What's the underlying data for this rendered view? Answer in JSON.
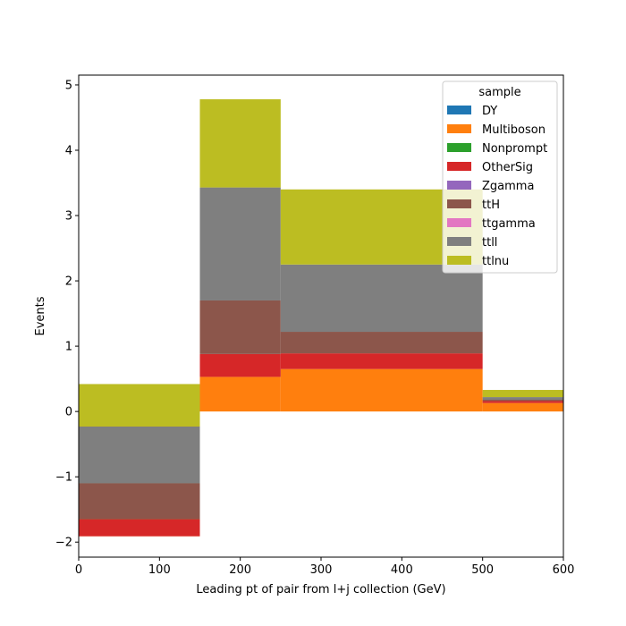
{
  "chart_data": {
    "type": "bar",
    "subtype": "stacked-histogram",
    "xlabel": "Leading pt of pair from l+j collection (GeV)",
    "ylabel": "Events",
    "xlim": [
      0,
      600
    ],
    "ylim": [
      -2.23,
      5.15
    ],
    "x_ticks": [
      0,
      100,
      200,
      300,
      400,
      500,
      600
    ],
    "y_ticks": [
      -2,
      -1,
      0,
      1,
      2,
      3,
      4,
      5
    ],
    "bin_edges": [
      0,
      150,
      250,
      500,
      600
    ],
    "legend": {
      "title": "sample",
      "placement": "top-right"
    },
    "grid": false,
    "series": [
      {
        "name": "DY",
        "color": "#1f77b4",
        "values": [
          0,
          0,
          0,
          0
        ]
      },
      {
        "name": "Multiboson",
        "color": "#ff7f0e",
        "values": [
          -1.91,
          0.53,
          0.65,
          0.13
        ]
      },
      {
        "name": "Nonprompt",
        "color": "#2ca02c",
        "values": [
          0,
          0,
          0,
          0
        ]
      },
      {
        "name": "OtherSig",
        "color": "#d62728",
        "values": [
          0.26,
          0.35,
          0.24,
          0.03
        ]
      },
      {
        "name": "Zgamma",
        "color": "#9467bd",
        "values": [
          0,
          0,
          0,
          0
        ]
      },
      {
        "name": "ttH",
        "color": "#8c564b",
        "values": [
          0.55,
          0.82,
          0.33,
          0.02
        ]
      },
      {
        "name": "ttgamma",
        "color": "#e377c2",
        "values": [
          0,
          0,
          0,
          0
        ]
      },
      {
        "name": "ttll",
        "color": "#7f7f7f",
        "values": [
          0.87,
          1.73,
          1.03,
          0.04
        ]
      },
      {
        "name": "ttlnu",
        "color": "#bcbd22",
        "values": [
          0.65,
          1.35,
          1.15,
          0.11
        ]
      }
    ]
  }
}
